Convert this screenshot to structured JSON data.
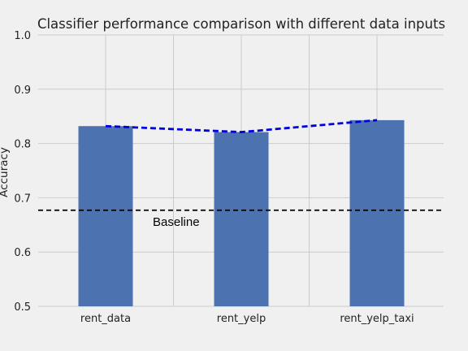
{
  "chart_data": {
    "type": "bar",
    "title": "Classifier performance comparison with different data inputs",
    "xlabel": "",
    "ylabel": "Accuracy",
    "categories": [
      "rent_data",
      "rent_yelp",
      "rent_yelp_taxi"
    ],
    "series": [
      {
        "values": [
          0.832,
          0.821,
          0.843
        ],
        "color": "#4c72b0"
      },
      {
        "type": "line",
        "values": [
          0.832,
          0.821,
          0.843
        ],
        "color": "#0000dd",
        "style": "dashed"
      }
    ],
    "baseline": {
      "value": 0.677,
      "label": "Baseline",
      "color": "#000000",
      "style": "dashed"
    },
    "ylim": [
      0.5,
      1.0
    ],
    "yticks": [
      "0.5",
      "0.6",
      "0.7",
      "0.8",
      "0.9",
      "1.0"
    ],
    "grid": true,
    "background_color": "#f0f0f0",
    "grid_color": "#cbcbcb"
  }
}
